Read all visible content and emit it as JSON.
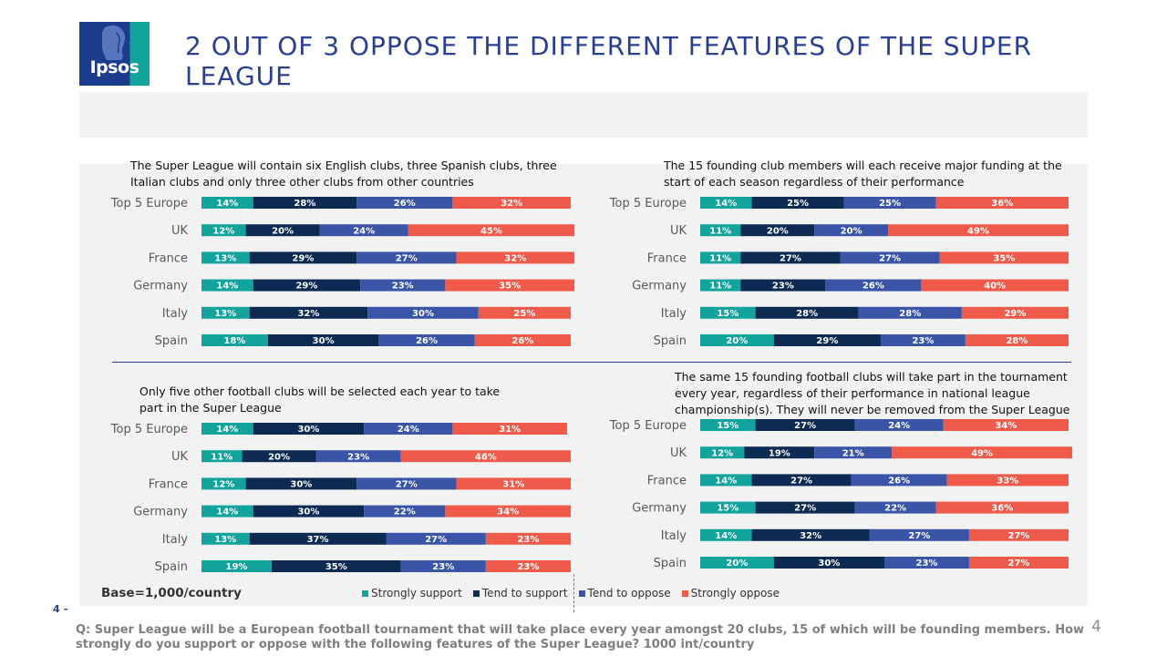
{
  "header": {
    "brand": "Ipsos",
    "title": "2 OUT OF 3 OPPOSE THE DIFFERENT FEATURES OF THE SUPER LEAGUE"
  },
  "colors": {
    "strongly_support": "#12a39c",
    "tend_to_support": "#0c2a52",
    "tend_to_oppose": "#3a55a8",
    "strongly_oppose": "#ef5a4a"
  },
  "legend": [
    "Strongly support",
    "Tend to support",
    "Tend to oppose",
    "Strongly oppose"
  ],
  "footer": {
    "base": "Base=1,000/country",
    "slide_left": "4 –",
    "page_number": "4",
    "question": "Q: Super League will be a European football tournament that will take place every year amongst 20 clubs, 15 of which will be founding members. How strongly do you support or oppose with the following features of the Super League? 1000 int/country"
  },
  "chart_data": [
    {
      "type": "bar",
      "stacked": true,
      "orientation": "horizontal",
      "title": "The Super League will contain six English clubs, three Spanish clubs, three Italian clubs and only three other clubs from other countries",
      "categories": [
        "Top 5 Europe",
        "UK",
        "France",
        "Germany",
        "Italy",
        "Spain"
      ],
      "series": [
        {
          "name": "Strongly support",
          "values": [
            14,
            12,
            13,
            14,
            13,
            18
          ]
        },
        {
          "name": "Tend to support",
          "values": [
            28,
            20,
            29,
            29,
            32,
            30
          ]
        },
        {
          "name": "Tend to oppose",
          "values": [
            26,
            24,
            27,
            23,
            30,
            26
          ]
        },
        {
          "name": "Strongly oppose",
          "values": [
            32,
            45,
            32,
            35,
            25,
            26
          ]
        }
      ]
    },
    {
      "type": "bar",
      "stacked": true,
      "orientation": "horizontal",
      "title": "The 15 founding club members will each receive major funding at the start of each season regardless of their performance",
      "categories": [
        "Top 5 Europe",
        "UK",
        "France",
        "Germany",
        "Italy",
        "Spain"
      ],
      "series": [
        {
          "name": "Strongly support",
          "values": [
            14,
            11,
            11,
            11,
            15,
            20
          ]
        },
        {
          "name": "Tend to support",
          "values": [
            25,
            20,
            27,
            23,
            28,
            29
          ]
        },
        {
          "name": "Tend to oppose",
          "values": [
            25,
            20,
            27,
            26,
            28,
            23
          ]
        },
        {
          "name": "Strongly oppose",
          "values": [
            36,
            49,
            35,
            40,
            29,
            28
          ]
        }
      ]
    },
    {
      "type": "bar",
      "stacked": true,
      "orientation": "horizontal",
      "title": "Only five other football clubs will be selected each year to take part in the Super League",
      "categories": [
        "Top 5 Europe",
        "UK",
        "France",
        "Germany",
        "Italy",
        "Spain"
      ],
      "series": [
        {
          "name": "Strongly support",
          "values": [
            14,
            11,
            12,
            14,
            13,
            19
          ]
        },
        {
          "name": "Tend to support",
          "values": [
            30,
            20,
            30,
            30,
            37,
            35
          ]
        },
        {
          "name": "Tend to oppose",
          "values": [
            24,
            23,
            27,
            22,
            27,
            23
          ]
        },
        {
          "name": "Strongly oppose",
          "values": [
            31,
            46,
            31,
            34,
            23,
            23
          ]
        }
      ]
    },
    {
      "type": "bar",
      "stacked": true,
      "orientation": "horizontal",
      "title": "The same 15 founding football clubs will take part in the tournament every year, regardless of their performance in national league championship(s). They will never be removed from the Super League",
      "categories": [
        "Top 5 Europe",
        "UK",
        "France",
        "Germany",
        "Italy",
        "Spain"
      ],
      "series": [
        {
          "name": "Strongly support",
          "values": [
            15,
            12,
            14,
            15,
            14,
            20
          ]
        },
        {
          "name": "Tend to support",
          "values": [
            27,
            19,
            27,
            27,
            32,
            30
          ]
        },
        {
          "name": "Tend to oppose",
          "values": [
            24,
            21,
            26,
            22,
            27,
            23
          ]
        },
        {
          "name": "Strongly oppose",
          "values": [
            34,
            49,
            33,
            36,
            27,
            27
          ]
        }
      ]
    }
  ]
}
